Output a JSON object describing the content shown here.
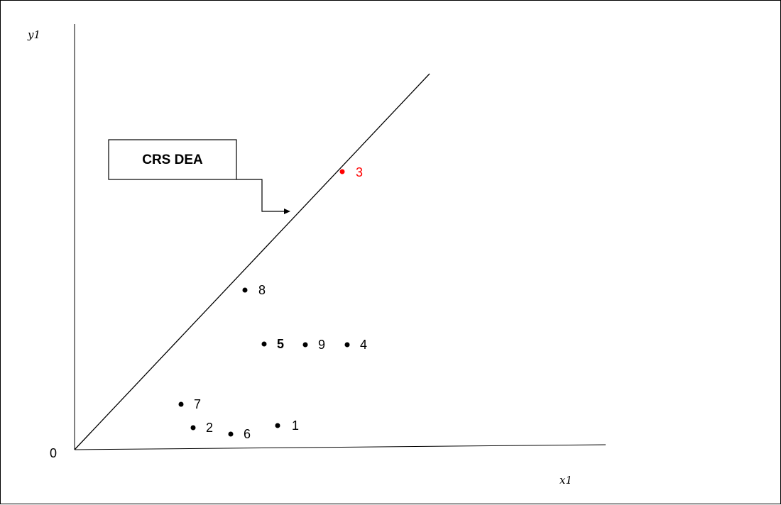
{
  "axes": {
    "y_label": "y1",
    "x_label": "x1",
    "origin_label": "0"
  },
  "frontier": {
    "callout_label": "CRS DEA"
  },
  "points": [
    {
      "id": "1",
      "label": "1",
      "highlight": false,
      "bold": false
    },
    {
      "id": "2",
      "label": "2",
      "highlight": false,
      "bold": false
    },
    {
      "id": "3",
      "label": "3",
      "highlight": true,
      "bold": false
    },
    {
      "id": "4",
      "label": "4",
      "highlight": false,
      "bold": false
    },
    {
      "id": "5",
      "label": "5",
      "highlight": false,
      "bold": true
    },
    {
      "id": "6",
      "label": "6",
      "highlight": false,
      "bold": false
    },
    {
      "id": "7",
      "label": "7",
      "highlight": false,
      "bold": false
    },
    {
      "id": "8",
      "label": "8",
      "highlight": false,
      "bold": false
    },
    {
      "id": "9",
      "label": "9",
      "highlight": false,
      "bold": false
    }
  ],
  "colors": {
    "ink": "#000000",
    "highlight": "#ff0000"
  }
}
